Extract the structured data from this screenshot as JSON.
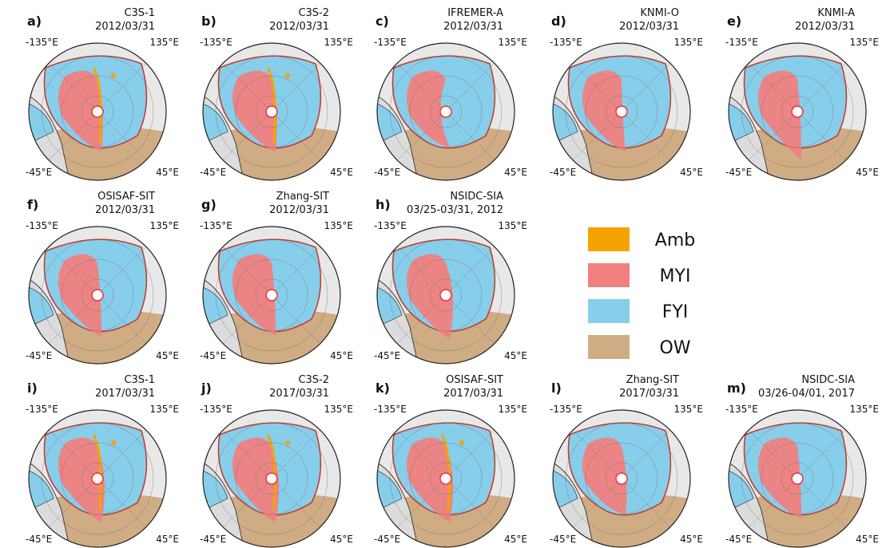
{
  "panels": [
    {
      "letter": "a)",
      "product": "C3S-1",
      "date": "2012/03/31"
    },
    {
      "letter": "b)",
      "product": "C3S-2",
      "date": "2012/03/31"
    },
    {
      "letter": "c)",
      "product": "IFREMER-A",
      "date": "2012/03/31"
    },
    {
      "letter": "d)",
      "product": "KNMI-O",
      "date": "2012/03/31"
    },
    {
      "letter": "e)",
      "product": "KNMI-A",
      "date": "2012/03/31"
    },
    {
      "letter": "f)",
      "product": "OSISAF-SIT",
      "date": "2012/03/31"
    },
    {
      "letter": "g)",
      "product": "Zhang-SIT",
      "date": "2012/03/31"
    },
    {
      "letter": "h)",
      "product": "NSIDC-SIA",
      "date": "03/25-03/31, 2012"
    },
    {
      "letter": "i)",
      "product": "C3S-1",
      "date": "2017/03/31"
    },
    {
      "letter": "j)",
      "product": "C3S-2",
      "date": "2017/03/31"
    },
    {
      "letter": "k)",
      "product": "OSISAF-SIT",
      "date": "2017/03/31"
    },
    {
      "letter": "l)",
      "product": "Zhang-SIT",
      "date": "2017/03/31"
    },
    {
      "letter": "m)",
      "product": "NSIDC-SIA",
      "date": "03/26-04/01, 2017"
    }
  ],
  "lon_labels": [
    "-135°E",
    "135°E",
    "-45°E",
    "45°E"
  ],
  "legend": [
    {
      "name": "Amb",
      "color": "#f5a300"
    },
    {
      "name": "MYI",
      "color": "#f08080"
    },
    {
      "name": "FYI",
      "color": "#87ceeb"
    },
    {
      "name": "OW",
      "color": "#cfac84"
    }
  ]
}
